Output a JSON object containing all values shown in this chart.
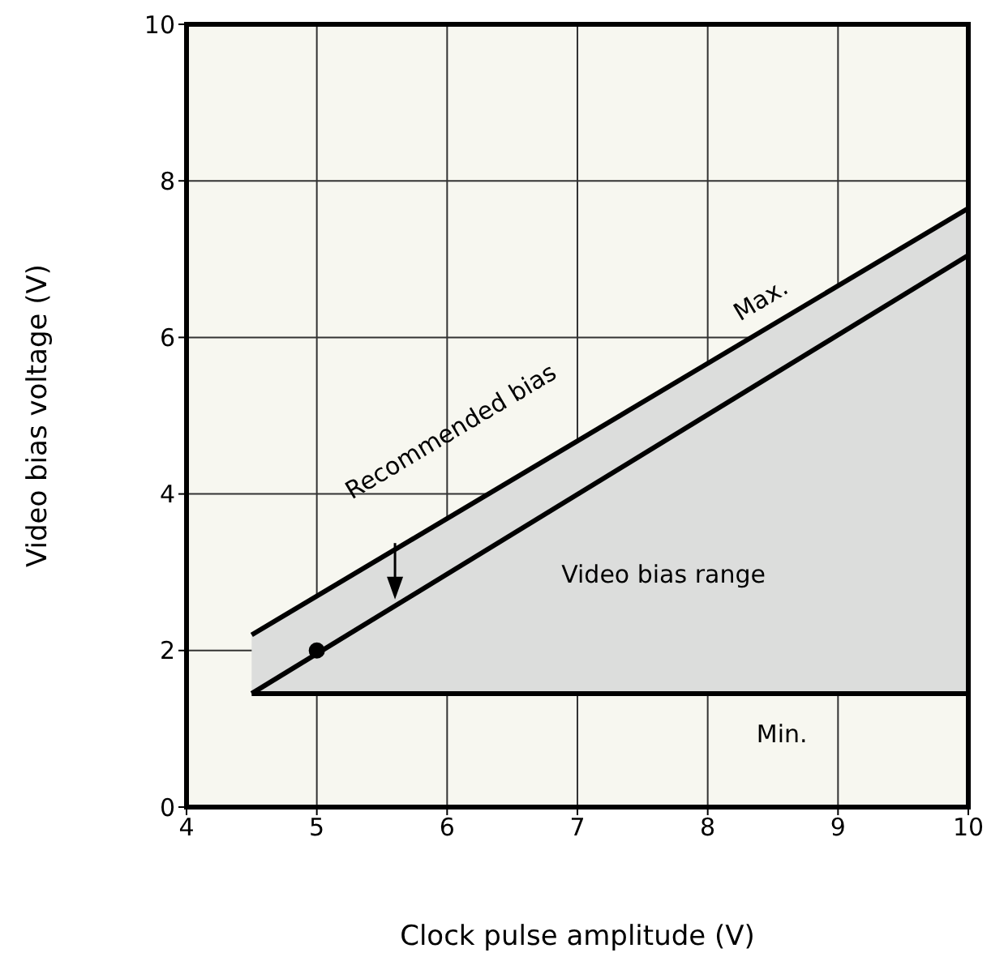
{
  "chart_data": {
    "type": "line",
    "xlabel": "Clock pulse amplitude (V)",
    "ylabel": "Video bias voltage (V)",
    "series": [
      {
        "name": "Max.",
        "color": "#000000",
        "x": [
          4.5,
          10
        ],
        "values": [
          2.2,
          7.65
        ]
      },
      {
        "name": "Recommended bias",
        "color": "#000000",
        "x": [
          4.5,
          10
        ],
        "values": [
          1.45,
          7.05
        ],
        "lower": [
          1.45,
          1.45
        ],
        "upper": [
          2.2,
          7.65
        ]
      },
      {
        "name": "Min.",
        "color": "#000000",
        "x": [
          4.5,
          10
        ],
        "values": [
          1.45,
          1.45
        ]
      },
      {
        "type": "scatter",
        "color": "#000000",
        "x": [
          5
        ],
        "values": [
          2
        ],
        "marker": "circle"
      }
    ],
    "annotations": [
      "Video bias range"
    ],
    "xlim": [
      4,
      10
    ],
    "ylim": [
      0,
      10
    ],
    "xticks": [
      4,
      5,
      6,
      7,
      8,
      9,
      10
    ],
    "yticks": [
      0,
      2,
      4,
      6,
      8,
      10
    ],
    "grid": true,
    "legend": false
  }
}
